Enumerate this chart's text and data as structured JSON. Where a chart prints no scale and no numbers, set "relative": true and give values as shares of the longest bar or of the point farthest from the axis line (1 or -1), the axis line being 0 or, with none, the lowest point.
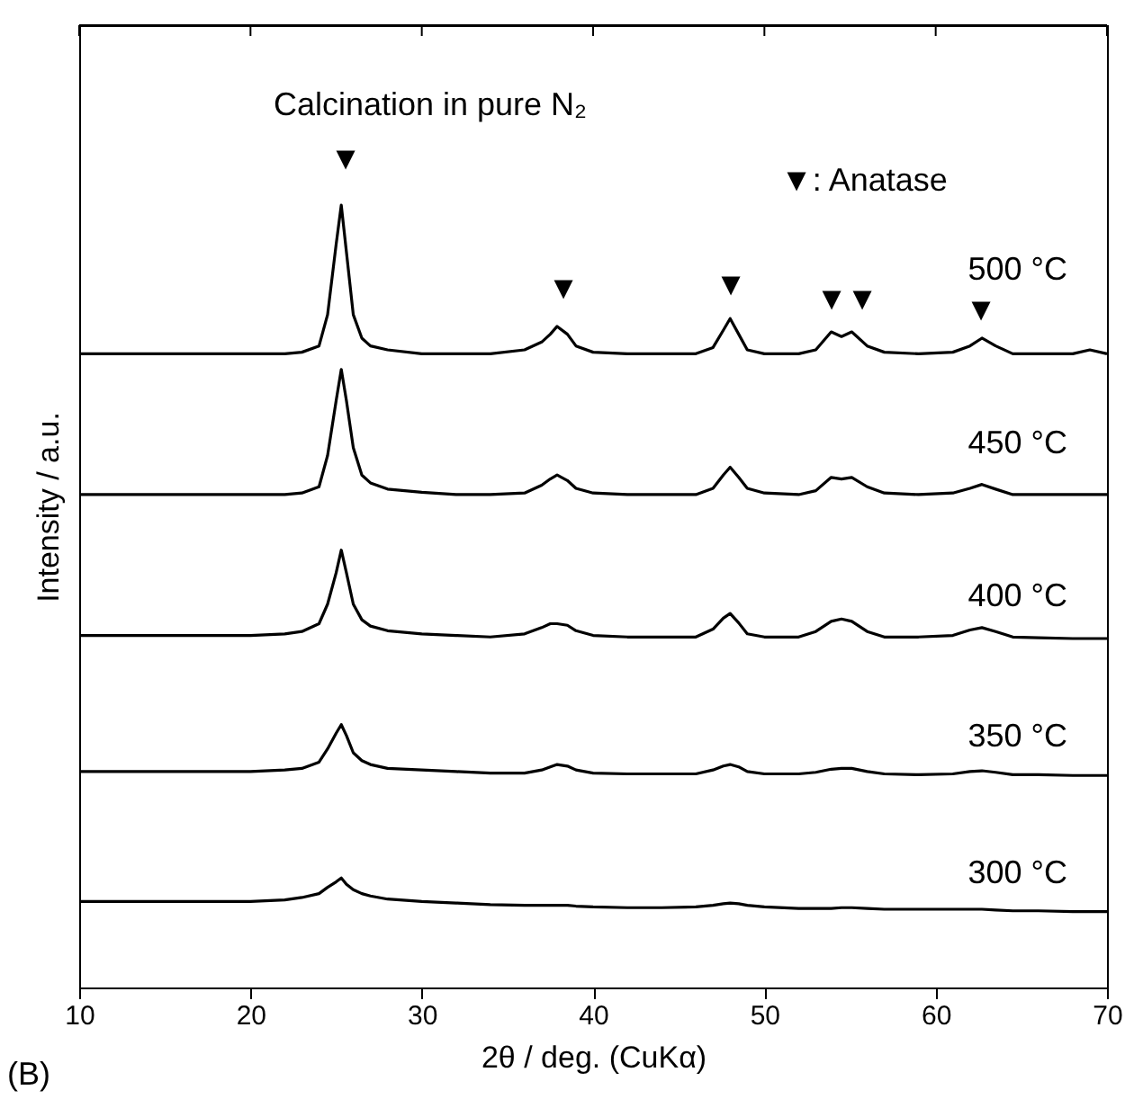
{
  "chart_data": {
    "type": "line",
    "relative": true,
    "xlabel": "2θ / deg. (CuKα)",
    "ylabel": "Intensity / a.u.",
    "xlim": [
      10,
      70
    ],
    "xticks": [
      10,
      20,
      30,
      40,
      50,
      60,
      70
    ],
    "grid": false,
    "marker": "none",
    "line_style": "solid",
    "x": [
      10,
      12,
      14,
      16,
      18,
      20,
      22,
      23,
      24,
      24.5,
      25,
      25.3,
      25.6,
      26,
      26.5,
      27,
      28,
      30,
      32,
      34,
      36,
      37,
      37.5,
      37.9,
      38.5,
      39,
      40,
      42,
      44,
      46,
      47,
      47.6,
      48,
      48.5,
      49,
      50,
      52,
      53,
      53.9,
      54.5,
      55.1,
      56,
      57,
      59,
      61,
      62,
      62.7,
      63.5,
      64.5,
      66,
      68,
      69,
      70
    ],
    "series": [
      {
        "name": "500 °C",
        "color": "#000000",
        "values": [
          0.81,
          0.81,
          0.81,
          0.81,
          0.81,
          0.81,
          0.81,
          0.812,
          0.82,
          0.86,
          0.95,
          1.0,
          0.94,
          0.86,
          0.83,
          0.82,
          0.815,
          0.81,
          0.81,
          0.81,
          0.815,
          0.825,
          0.835,
          0.845,
          0.835,
          0.82,
          0.812,
          0.81,
          0.81,
          0.81,
          0.818,
          0.84,
          0.855,
          0.835,
          0.815,
          0.81,
          0.81,
          0.815,
          0.838,
          0.832,
          0.838,
          0.82,
          0.812,
          0.81,
          0.812,
          0.82,
          0.83,
          0.82,
          0.81,
          0.81,
          0.81,
          0.815,
          0.81
        ]
      },
      {
        "name": "450 °C",
        "color": "#000000",
        "values": [
          0.63,
          0.63,
          0.63,
          0.63,
          0.63,
          0.63,
          0.63,
          0.632,
          0.64,
          0.68,
          0.75,
          0.79,
          0.75,
          0.69,
          0.655,
          0.645,
          0.637,
          0.633,
          0.63,
          0.63,
          0.632,
          0.642,
          0.65,
          0.655,
          0.648,
          0.638,
          0.632,
          0.63,
          0.63,
          0.63,
          0.638,
          0.655,
          0.665,
          0.652,
          0.638,
          0.632,
          0.63,
          0.635,
          0.652,
          0.65,
          0.652,
          0.64,
          0.632,
          0.63,
          0.632,
          0.638,
          0.643,
          0.637,
          0.63,
          0.63,
          0.63,
          0.63,
          0.63
        ]
      },
      {
        "name": "400 °C",
        "color": "#000000",
        "values": [
          0.45,
          0.45,
          0.45,
          0.45,
          0.45,
          0.45,
          0.452,
          0.455,
          0.465,
          0.49,
          0.53,
          0.559,
          0.53,
          0.49,
          0.47,
          0.462,
          0.456,
          0.452,
          0.45,
          0.448,
          0.452,
          0.46,
          0.465,
          0.465,
          0.463,
          0.456,
          0.45,
          0.448,
          0.448,
          0.448,
          0.458,
          0.472,
          0.478,
          0.466,
          0.452,
          0.448,
          0.448,
          0.455,
          0.468,
          0.471,
          0.468,
          0.455,
          0.448,
          0.448,
          0.45,
          0.457,
          0.46,
          0.455,
          0.448,
          0.447,
          0.446,
          0.446,
          0.446
        ]
      },
      {
        "name": "350 °C",
        "color": "#000000",
        "values": [
          0.276,
          0.276,
          0.276,
          0.276,
          0.276,
          0.276,
          0.278,
          0.28,
          0.288,
          0.305,
          0.325,
          0.336,
          0.322,
          0.3,
          0.29,
          0.285,
          0.28,
          0.278,
          0.276,
          0.274,
          0.274,
          0.278,
          0.282,
          0.285,
          0.283,
          0.278,
          0.274,
          0.273,
          0.273,
          0.273,
          0.278,
          0.283,
          0.285,
          0.282,
          0.276,
          0.273,
          0.273,
          0.275,
          0.279,
          0.28,
          0.28,
          0.276,
          0.273,
          0.272,
          0.273,
          0.276,
          0.277,
          0.275,
          0.272,
          0.272,
          0.271,
          0.271,
          0.271
        ]
      },
      {
        "name": "300 °C",
        "color": "#000000",
        "values": [
          0.11,
          0.11,
          0.11,
          0.11,
          0.11,
          0.11,
          0.112,
          0.115,
          0.12,
          0.128,
          0.135,
          0.14,
          0.132,
          0.125,
          0.12,
          0.117,
          0.113,
          0.11,
          0.108,
          0.106,
          0.105,
          0.105,
          0.105,
          0.105,
          0.105,
          0.104,
          0.103,
          0.102,
          0.102,
          0.103,
          0.105,
          0.107,
          0.108,
          0.107,
          0.105,
          0.103,
          0.101,
          0.101,
          0.101,
          0.102,
          0.102,
          0.101,
          0.1,
          0.1,
          0.1,
          0.1,
          0.1,
          0.099,
          0.098,
          0.098,
          0.097,
          0.097,
          0.097
        ]
      }
    ],
    "annotations": [
      "Calcination in pure N₂",
      "▼: Anatase",
      "(B)",
      "▼",
      "▼",
      "▼",
      "▼",
      "▼",
      "▼"
    ]
  }
}
